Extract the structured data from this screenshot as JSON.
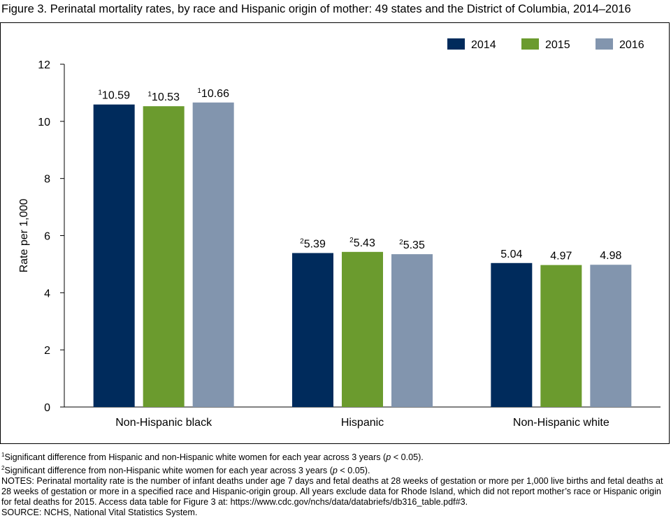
{
  "figure": {
    "title": "Figure 3. Perinatal mortality rates, by race and Hispanic origin of mother: 49 states and the District of Columbia, 2014–2016"
  },
  "chart_data": {
    "type": "bar",
    "categories": [
      "Non-Hispanic black",
      "Hispanic",
      "Non-Hispanic white"
    ],
    "series": [
      {
        "name": "2014",
        "color": "#002b5c",
        "values": [
          10.59,
          5.39,
          5.04
        ],
        "labels": [
          "10.59",
          "5.39",
          "5.04"
        ],
        "marks": [
          "1",
          "2",
          ""
        ]
      },
      {
        "name": "2015",
        "color": "#6b9b2e",
        "values": [
          10.53,
          5.43,
          4.97
        ],
        "labels": [
          "10.53",
          "5.43",
          "4.97"
        ],
        "marks": [
          "1",
          "2",
          ""
        ]
      },
      {
        "name": "2016",
        "color": "#8295ae",
        "values": [
          10.66,
          5.35,
          4.98
        ],
        "labels": [
          "10.66",
          "5.35",
          "4.98"
        ],
        "marks": [
          "1",
          "2",
          ""
        ]
      }
    ],
    "ylabel": "Rate per 1,000",
    "xlabel": "",
    "ylim": [
      0,
      12
    ],
    "yticks": [
      "0",
      "2",
      "4",
      "6",
      "8",
      "10",
      "12"
    ],
    "grid": false,
    "legend": "top-right"
  },
  "notes": {
    "note1_mark": "1",
    "note1_a": "Significant difference from Hispanic and non-Hispanic white women for each year across 3 years (",
    "note1_p": "p",
    "note1_b": " < 0.05).",
    "note2_mark": "2",
    "note2_a": "Significant difference from non-Hispanic white women for each year across 3 years (",
    "note2_p": "p",
    "note2_b": " < 0.05).",
    "notes_text": "NOTES: Perinatal mortality rate is the number of infant deaths under age 7 days and fetal deaths at 28 weeks of gestation or more per 1,000 live births and fetal deaths at 28 weeks of gestation or more in a specified race and Hispanic-origin group. All years exclude data for Rhode Island, which did not report mother’s race or Hispanic origin for fetal deaths for 2015. Access data table for Figure 3 at: https://www.cdc.gov/nchs/data/databriefs/db316_table.pdf#3.",
    "source": "SOURCE: NCHS, National Vital Statistics System."
  }
}
